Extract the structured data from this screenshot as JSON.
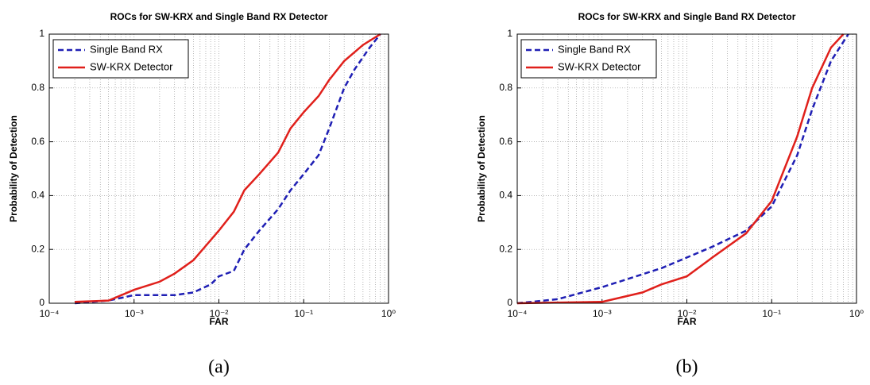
{
  "chart_data": [
    {
      "type": "line",
      "title": "ROCs for SW-KRX and Single Band RX Detector",
      "xlabel": "FAR",
      "ylabel": "Probability of Detection",
      "caption": "(a)",
      "xscale": "log",
      "xlim": [
        0.0001,
        1
      ],
      "xticks": [
        {
          "value": 0.0001,
          "label": "10⁻⁴"
        },
        {
          "value": 0.001,
          "label": "10⁻³"
        },
        {
          "value": 0.01,
          "label": "10⁻²"
        },
        {
          "value": 0.1,
          "label": "10⁻¹"
        },
        {
          "value": 1,
          "label": "10⁰"
        }
      ],
      "ylim": [
        0,
        1
      ],
      "yticks": [
        0,
        0.2,
        0.4,
        0.6,
        0.8,
        1
      ],
      "grid": true,
      "legend": "upper left",
      "series": [
        {
          "name": "Single Band RX",
          "color": "#1f1fb4",
          "linestyle": "dashed",
          "x": [
            0.0002,
            0.0005,
            0.001,
            0.003,
            0.005,
            0.008,
            0.01,
            0.015,
            0.02,
            0.03,
            0.05,
            0.07,
            0.1,
            0.15,
            0.2,
            0.3,
            0.4,
            0.6,
            0.8
          ],
          "values": [
            0,
            0.01,
            0.03,
            0.03,
            0.04,
            0.07,
            0.1,
            0.12,
            0.2,
            0.27,
            0.35,
            0.42,
            0.48,
            0.55,
            0.65,
            0.8,
            0.87,
            0.95,
            1
          ]
        },
        {
          "name": "SW-KRX Detector",
          "color": "#e0201b",
          "linestyle": "solid",
          "x": [
            0.0002,
            0.0005,
            0.001,
            0.002,
            0.003,
            0.005,
            0.01,
            0.015,
            0.02,
            0.03,
            0.05,
            0.07,
            0.1,
            0.15,
            0.2,
            0.3,
            0.5,
            0.8
          ],
          "values": [
            0.005,
            0.01,
            0.05,
            0.08,
            0.11,
            0.16,
            0.27,
            0.34,
            0.42,
            0.48,
            0.56,
            0.65,
            0.71,
            0.77,
            0.83,
            0.9,
            0.96,
            1
          ]
        }
      ]
    },
    {
      "type": "line",
      "title": "ROCs for SW-KRX and Single Band RX Detector",
      "xlabel": "FAR",
      "ylabel": "Probability of Detection",
      "caption": "(b)",
      "xscale": "log",
      "xlim": [
        0.0001,
        1
      ],
      "xticks": [
        {
          "value": 0.0001,
          "label": "10⁻⁴"
        },
        {
          "value": 0.001,
          "label": "10⁻³"
        },
        {
          "value": 0.01,
          "label": "10⁻²"
        },
        {
          "value": 0.1,
          "label": "10⁻¹"
        },
        {
          "value": 1,
          "label": "10⁰"
        }
      ],
      "ylim": [
        0,
        1
      ],
      "yticks": [
        0,
        0.2,
        0.4,
        0.6,
        0.8,
        1
      ],
      "grid": true,
      "legend": "upper left",
      "series": [
        {
          "name": "Single Band RX",
          "color": "#1f1fb4",
          "linestyle": "dashed",
          "x": [
            0.0001,
            0.0003,
            0.001,
            0.002,
            0.005,
            0.01,
            0.02,
            0.05,
            0.1,
            0.2,
            0.3,
            0.5,
            0.8
          ],
          "values": [
            0,
            0.015,
            0.06,
            0.09,
            0.13,
            0.17,
            0.21,
            0.27,
            0.36,
            0.55,
            0.72,
            0.9,
            1
          ]
        },
        {
          "name": "SW-KRX Detector",
          "color": "#e0201b",
          "linestyle": "solid",
          "x": [
            0.0001,
            0.001,
            0.003,
            0.005,
            0.01,
            0.02,
            0.05,
            0.1,
            0.2,
            0.3,
            0.5,
            0.7
          ],
          "values": [
            0,
            0.005,
            0.04,
            0.07,
            0.1,
            0.17,
            0.26,
            0.38,
            0.62,
            0.8,
            0.95,
            1
          ]
        }
      ]
    }
  ]
}
